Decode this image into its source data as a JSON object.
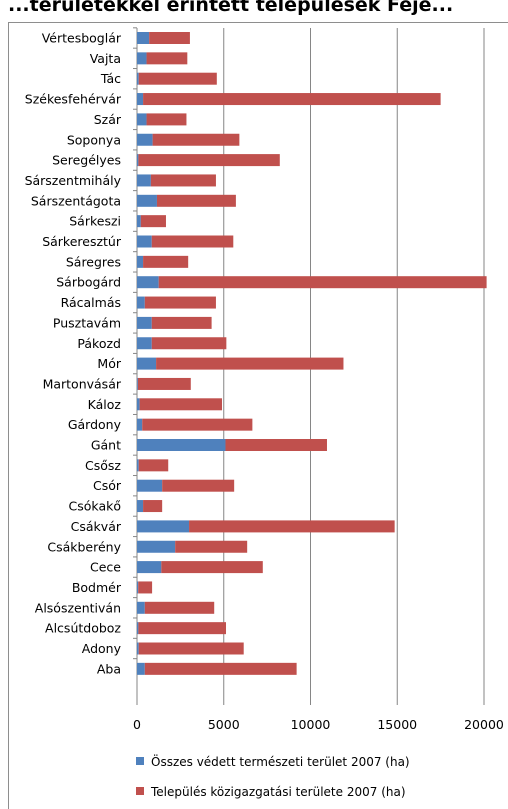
{
  "chart_data": {
    "type": "bar",
    "orientation": "horizontal",
    "stacked": true,
    "title": "...területekkel érintett települések Fejé...",
    "categories": [
      "Vértesboglár",
      "Vajta",
      "Tác",
      "Székesfehérvár",
      "Szár",
      "Soponya",
      "Seregélyes",
      "Sárszentmihály",
      "Sárszentágota",
      "Sárkeszi",
      "Sárkeresztúr",
      "Sáregres",
      "Sárbogárd",
      "Rácalmás",
      "Pusztavám",
      "Pákozd",
      "Mór",
      "Martonvásár",
      "Káloz",
      "Gárdony",
      "Gánt",
      "Csősz",
      "Csór",
      "Csókakő",
      "Csákvár",
      "Csákberény",
      "Cece",
      "Bodmér",
      "Alsószentiván",
      "Alcsútdoboz",
      "Adony",
      "Aba"
    ],
    "series": [
      {
        "name": "Összes védett természeti terület 2007 (ha)",
        "color": "#4f81bd",
        "values": [
          700,
          550,
          100,
          350,
          550,
          900,
          80,
          800,
          1150,
          220,
          850,
          350,
          1250,
          450,
          850,
          850,
          1100,
          50,
          150,
          300,
          5100,
          100,
          1450,
          350,
          3000,
          2200,
          1400,
          70,
          450,
          80,
          100,
          450
        ]
      },
      {
        "name": "Település közigazgatási területe 2007 (ha)",
        "color": "#c0504d",
        "values": [
          2350,
          2350,
          4500,
          17150,
          2300,
          5000,
          8150,
          3750,
          4550,
          1450,
          4700,
          2600,
          18900,
          4100,
          3450,
          4300,
          10800,
          3050,
          4750,
          6350,
          5850,
          1700,
          4150,
          1100,
          11850,
          4150,
          5850,
          800,
          4000,
          5050,
          6050,
          8750
        ]
      }
    ],
    "xlim": [
      0,
      20000
    ],
    "xticks": [
      "0",
      "5000",
      "10000",
      "15000",
      "20000"
    ],
    "grid": true,
    "legend_position": "bottom"
  }
}
